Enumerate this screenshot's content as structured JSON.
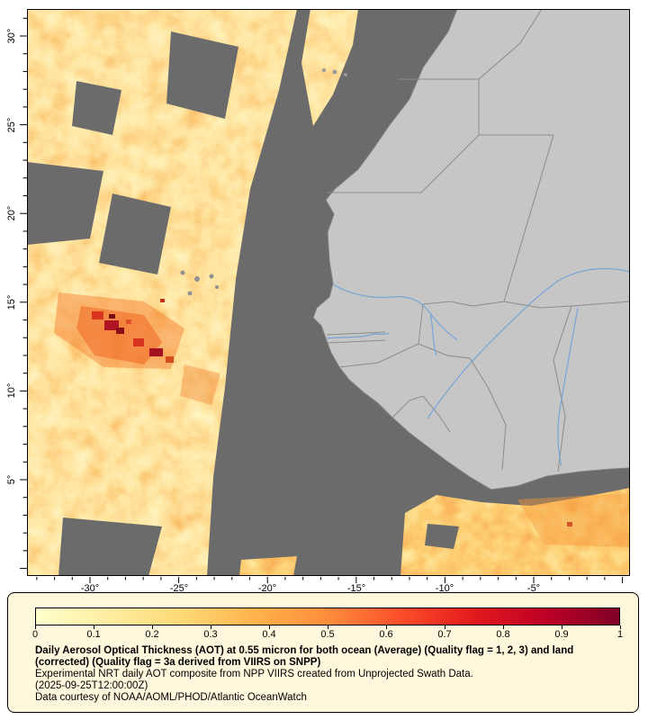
{
  "map": {
    "lat_ticks": [
      "30°",
      "25°",
      "20°",
      "15°",
      "10°",
      "5°"
    ],
    "lon_ticks": [
      "-30°",
      "-25°",
      "-20°",
      "-15°",
      "-10°",
      "-5°"
    ]
  },
  "legend": {
    "colorbar": {
      "ticks": [
        "0",
        "0.1",
        "0.2",
        "0.3",
        "0.4",
        "0.5",
        "0.6",
        "0.7",
        "0.8",
        "0.9",
        "1"
      ],
      "colors": [
        "#FFFFCC",
        "#FFEDA0",
        "#FED976",
        "#FEB24C",
        "#FD8D3C",
        "#FC4E2A",
        "#E31A1C",
        "#BD0026",
        "#800026"
      ]
    },
    "caption_bold": "Daily Aerosol Optical Thickness (AOT) at 0.55 micron for both ocean (Average) (Quality flag = 1, 2, 3) and land (corrected) (Quality flag = 3a derived from VIIRS on SNPP)",
    "caption_line2": "Experimental NRT daily AOT composite from NPP VIIRS created from Unprojected Swath Data.",
    "caption_line3": "(2025-09-25T12:00:00Z)",
    "caption_line4": "Data courtesy of NOAA/AOML/PHOD/Atlantic OceanWatch"
  },
  "colors": {
    "no_data_gray": "#6b6b6b",
    "land_gray": "#c6c6c6",
    "country_border": "#8c8c8c",
    "river_blue": "#76a5d6",
    "frame": "#000000",
    "legend_background": "#fff8dc"
  }
}
